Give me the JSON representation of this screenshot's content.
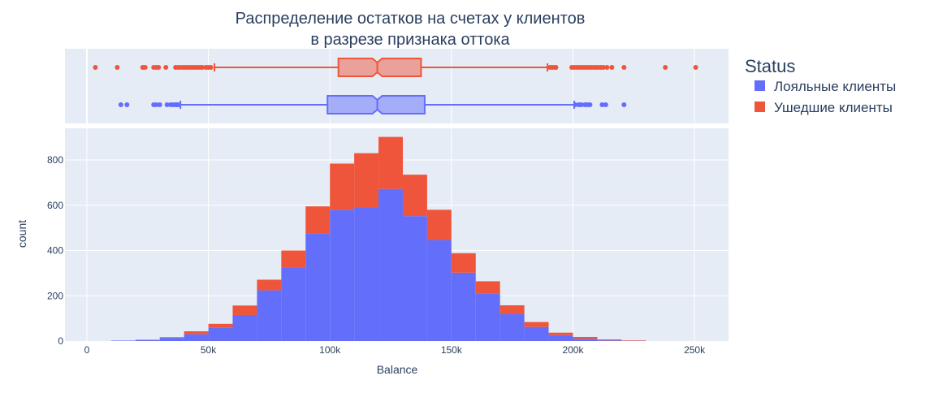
{
  "chart_data": {
    "type": "bar",
    "title_line1": "Распределение остатков на счетах у клиентов",
    "title_line2": "в разрезе признака оттока",
    "xlabel": "Balance",
    "ylabel": "count",
    "xlim": [
      -9000,
      264000
    ],
    "ylim": [
      0,
      940
    ],
    "x_ticks": [
      0,
      50000,
      100000,
      150000,
      200000,
      250000
    ],
    "x_tick_labels": [
      "0",
      "50k",
      "100k",
      "150k",
      "200k",
      "250k"
    ],
    "y_ticks": [
      0,
      200,
      400,
      600,
      800
    ],
    "y_tick_labels": [
      "0",
      "200",
      "400",
      "600",
      "800"
    ],
    "bin_width": 10000,
    "bin_starts": [
      10000,
      20000,
      30000,
      40000,
      50000,
      60000,
      70000,
      80000,
      90000,
      100000,
      110000,
      120000,
      130000,
      140000,
      150000,
      160000,
      170000,
      180000,
      190000,
      200000,
      210000,
      220000
    ],
    "legend_title": "Status",
    "legend_position": "right",
    "series": [
      {
        "name": "Лояльные клиенты",
        "color": "#636efa",
        "values": [
          2,
          4,
          14,
          30,
          58,
          115,
          224,
          325,
          475,
          580,
          590,
          672,
          552,
          447,
          302,
          211,
          120,
          62,
          26,
          10,
          3,
          1
        ],
        "box": {
          "q1": 99000,
          "median": 119500,
          "q3": 139000,
          "notch": [
            117500,
            121500
          ],
          "whisker_low": 38500,
          "whisker_high": 200500,
          "outliers": [
            14000,
            16500,
            27500,
            28500,
            30000,
            33000,
            34500,
            35500,
            36500,
            37000,
            37500,
            201000,
            202500,
            203500,
            205000,
            206000,
            207000,
            212000,
            213500,
            221000
          ]
        }
      },
      {
        "name": "Ушедшие клиенты",
        "color": "#ef553b",
        "values": [
          0,
          2,
          3,
          13,
          18,
          42,
          47,
          75,
          120,
          204,
          240,
          230,
          183,
          133,
          86,
          53,
          38,
          22,
          11,
          8,
          4,
          2
        ],
        "box": {
          "q1": 103500,
          "median": 119500,
          "q3": 137500,
          "notch": [
            117500,
            121500
          ],
          "whisker_low": 52500,
          "whisker_high": 189500,
          "outliers": [
            3500,
            12500,
            23000,
            24000,
            27500,
            28500,
            29500,
            32500,
            36500,
            37500,
            38500,
            39500,
            40500,
            41500,
            42500,
            43500,
            44500,
            45500,
            46500,
            47500,
            49000,
            50000,
            51000,
            190500,
            191500,
            192500,
            193000,
            199500,
            200500,
            201500,
            202500,
            203500,
            204500,
            205500,
            206500,
            207500,
            208500,
            209500,
            210500,
            211500,
            212500,
            214000,
            216000,
            221000,
            238000,
            250500
          ]
        }
      }
    ],
    "grid": true
  }
}
